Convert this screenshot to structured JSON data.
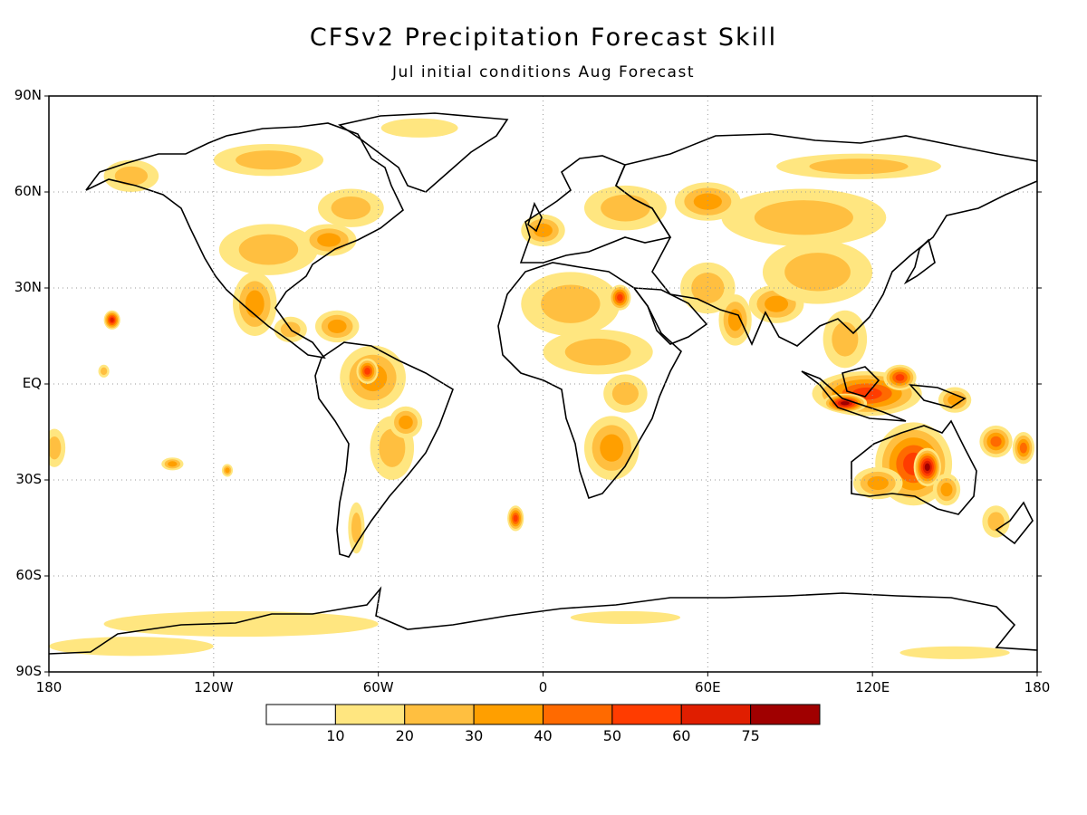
{
  "title": "CFSv2 Precipitation Forecast Skill",
  "subtitle": "Jul initial conditions  Aug Forecast",
  "map": {
    "projection": "cylindrical-equidistant",
    "lon_range": [
      -180,
      180
    ],
    "lat_range": [
      -90,
      90
    ],
    "grid": true,
    "lat_labels": [
      {
        "lat": 90,
        "text": "90N"
      },
      {
        "lat": 60,
        "text": "60N"
      },
      {
        "lat": 30,
        "text": "30N"
      },
      {
        "lat": 0,
        "text": "EQ"
      },
      {
        "lat": -30,
        "text": "30S"
      },
      {
        "lat": -60,
        "text": "60S"
      },
      {
        "lat": -90,
        "text": "90S"
      }
    ],
    "lon_labels": [
      {
        "lon": -180,
        "text": "180"
      },
      {
        "lon": -120,
        "text": "120W"
      },
      {
        "lon": -60,
        "text": "60W"
      },
      {
        "lon": 0,
        "text": "0"
      },
      {
        "lon": 60,
        "text": "60E"
      },
      {
        "lon": 120,
        "text": "120E"
      },
      {
        "lon": 180,
        "text": "180"
      }
    ]
  },
  "colorbar": {
    "labels": [
      "10",
      "20",
      "30",
      "40",
      "50",
      "60",
      "75"
    ],
    "colors": [
      "#ffffff",
      "#ffe680",
      "#ffbf40",
      "#ff9f00",
      "#ff6a00",
      "#ff3c00",
      "#e01e00",
      "#a00000"
    ]
  },
  "skill_regions": [
    {
      "lon": 135,
      "lat": -25,
      "rx": 14,
      "ry": 13,
      "level": 5
    },
    {
      "lon": 140,
      "lat": -26,
      "rx": 5,
      "ry": 6,
      "level": 7
    },
    {
      "lon": 122,
      "lat": -31,
      "rx": 9,
      "ry": 5,
      "level": 3
    },
    {
      "lon": 147,
      "lat": -33,
      "rx": 5,
      "ry": 5,
      "level": 3
    },
    {
      "lon": 118,
      "lat": -3,
      "rx": 20,
      "ry": 7,
      "level": 5
    },
    {
      "lon": 110,
      "lat": -6,
      "rx": 8,
      "ry": 3,
      "level": 7
    },
    {
      "lon": 130,
      "lat": 2,
      "rx": 6,
      "ry": 4,
      "level": 5
    },
    {
      "lon": 165,
      "lat": -18,
      "rx": 6,
      "ry": 5,
      "level": 4
    },
    {
      "lon": 150,
      "lat": -5,
      "rx": 6,
      "ry": 4,
      "level": 3
    },
    {
      "lon": 110,
      "lat": 14,
      "rx": 8,
      "ry": 9,
      "level": 2
    },
    {
      "lon": 85,
      "lat": 25,
      "rx": 10,
      "ry": 6,
      "level": 3
    },
    {
      "lon": 60,
      "lat": 30,
      "rx": 10,
      "ry": 8,
      "level": 2
    },
    {
      "lon": 70,
      "lat": 20,
      "rx": 6,
      "ry": 8,
      "level": 3
    },
    {
      "lon": 100,
      "lat": 35,
      "rx": 20,
      "ry": 10,
      "level": 2
    },
    {
      "lon": 95,
      "lat": 52,
      "rx": 30,
      "ry": 9,
      "level": 2
    },
    {
      "lon": 115,
      "lat": 68,
      "rx": 30,
      "ry": 4,
      "level": 2
    },
    {
      "lon": 60,
      "lat": 57,
      "rx": 12,
      "ry": 6,
      "level": 3
    },
    {
      "lon": 30,
      "lat": 55,
      "rx": 15,
      "ry": 7,
      "level": 2
    },
    {
      "lon": 0,
      "lat": 48,
      "rx": 8,
      "ry": 5,
      "level": 3
    },
    {
      "lon": 10,
      "lat": 25,
      "rx": 18,
      "ry": 10,
      "level": 2
    },
    {
      "lon": 28,
      "lat": 27,
      "rx": 4,
      "ry": 4,
      "level": 5
    },
    {
      "lon": 20,
      "lat": 10,
      "rx": 20,
      "ry": 7,
      "level": 2
    },
    {
      "lon": 25,
      "lat": -20,
      "rx": 10,
      "ry": 10,
      "level": 3
    },
    {
      "lon": 30,
      "lat": -3,
      "rx": 8,
      "ry": 6,
      "level": 2
    },
    {
      "lon": -62,
      "lat": 2,
      "rx": 12,
      "ry": 10,
      "level": 3
    },
    {
      "lon": -64,
      "lat": 4,
      "rx": 4,
      "ry": 4,
      "level": 5
    },
    {
      "lon": -55,
      "lat": -20,
      "rx": 8,
      "ry": 10,
      "level": 2
    },
    {
      "lon": -50,
      "lat": -12,
      "rx": 6,
      "ry": 5,
      "level": 3
    },
    {
      "lon": -68,
      "lat": -45,
      "rx": 3,
      "ry": 8,
      "level": 2
    },
    {
      "lon": -105,
      "lat": 25,
      "rx": 8,
      "ry": 10,
      "level": 3
    },
    {
      "lon": -92,
      "lat": 17,
      "rx": 6,
      "ry": 4,
      "level": 2
    },
    {
      "lon": -75,
      "lat": 18,
      "rx": 8,
      "ry": 5,
      "level": 3
    },
    {
      "lon": -100,
      "lat": 42,
      "rx": 18,
      "ry": 8,
      "level": 2
    },
    {
      "lon": -78,
      "lat": 45,
      "rx": 10,
      "ry": 5,
      "level": 3
    },
    {
      "lon": -70,
      "lat": 55,
      "rx": 12,
      "ry": 6,
      "level": 2
    },
    {
      "lon": -100,
      "lat": 70,
      "rx": 20,
      "ry": 5,
      "level": 2
    },
    {
      "lon": -150,
      "lat": 65,
      "rx": 10,
      "ry": 5,
      "level": 2
    },
    {
      "lon": -45,
      "lat": 80,
      "rx": 14,
      "ry": 3,
      "level": 1
    },
    {
      "lon": -157,
      "lat": 20,
      "rx": 3,
      "ry": 3,
      "level": 6
    },
    {
      "lon": -160,
      "lat": 4,
      "rx": 2,
      "ry": 2,
      "level": 2
    },
    {
      "lon": -135,
      "lat": -25,
      "rx": 4,
      "ry": 2,
      "level": 3
    },
    {
      "lon": -115,
      "lat": -27,
      "rx": 2,
      "ry": 2,
      "level": 3
    },
    {
      "lon": -10,
      "lat": -42,
      "rx": 3,
      "ry": 4,
      "level": 5
    },
    {
      "lon": -178,
      "lat": -20,
      "rx": 4,
      "ry": 6,
      "level": 2
    },
    {
      "lon": 175,
      "lat": -20,
      "rx": 4,
      "ry": 5,
      "level": 4
    },
    {
      "lon": -110,
      "lat": -75,
      "rx": 50,
      "ry": 4,
      "level": 1
    },
    {
      "lon": -150,
      "lat": -82,
      "rx": 30,
      "ry": 3,
      "level": 1
    },
    {
      "lon": 30,
      "lat": -73,
      "rx": 20,
      "ry": 2,
      "level": 1
    },
    {
      "lon": 150,
      "lat": -84,
      "rx": 20,
      "ry": 2,
      "level": 1
    },
    {
      "lon": 165,
      "lat": -43,
      "rx": 5,
      "ry": 5,
      "level": 2
    }
  ]
}
